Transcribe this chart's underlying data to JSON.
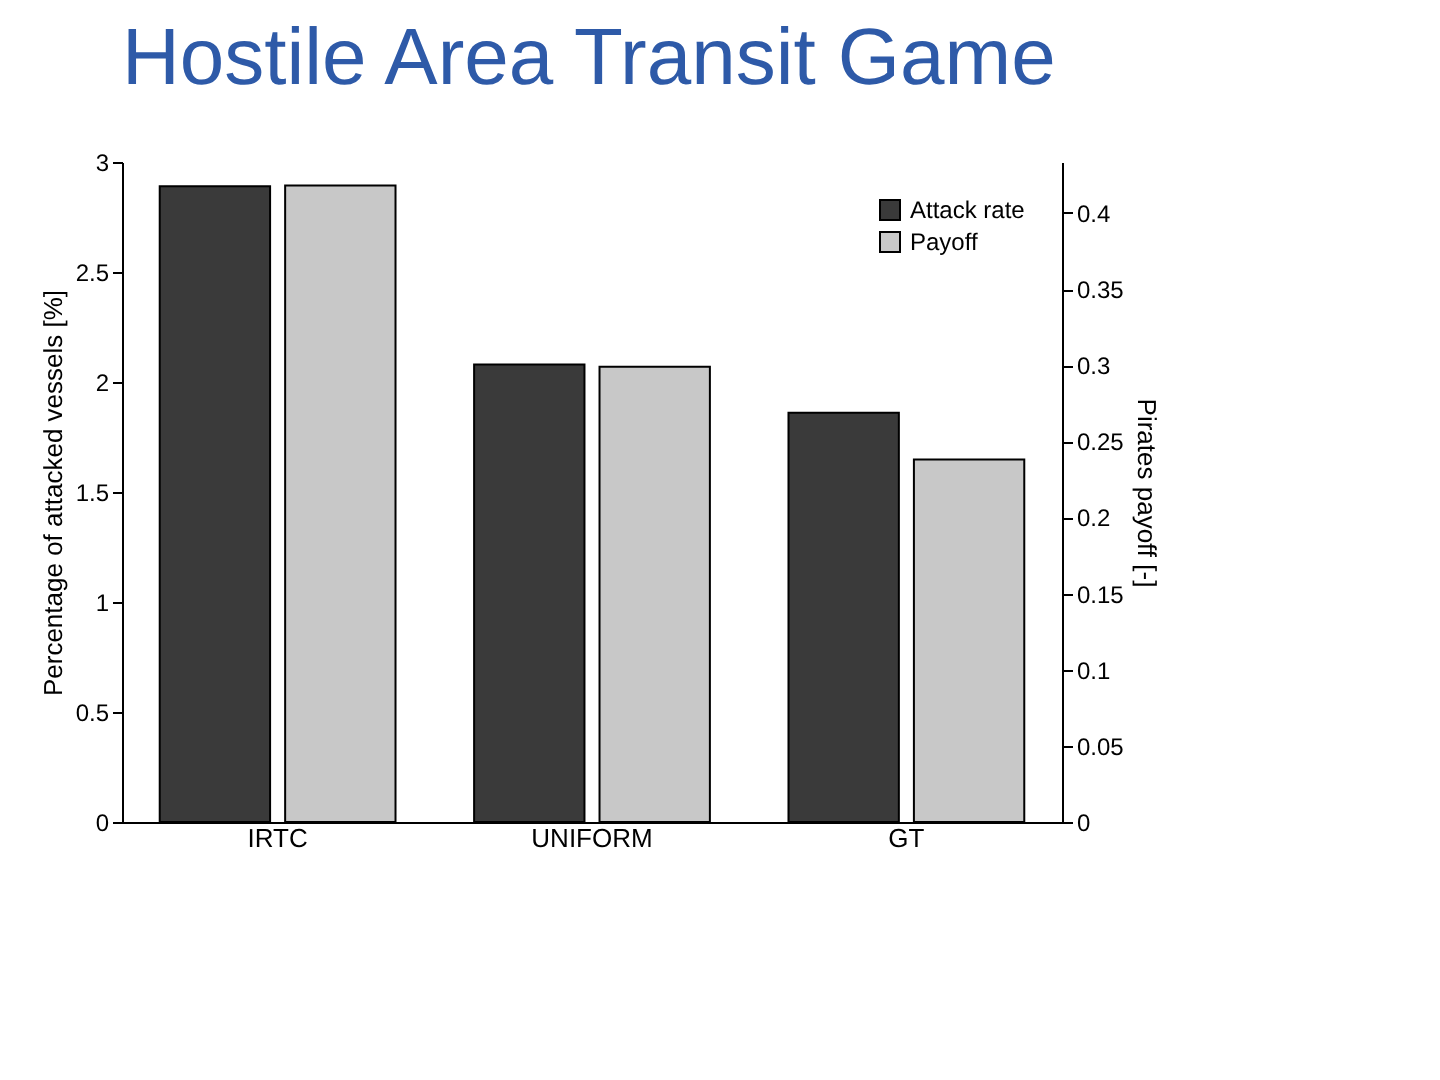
{
  "chart_data": {
    "type": "bar",
    "title": "Hostile Area Transit Game",
    "categories": [
      "IRTC",
      "UNIFORM",
      "GT"
    ],
    "ylabel": "Percentage of attacked vessels [%]",
    "y2label": "Pirates payoff [-]",
    "series": [
      {
        "name": "Attack rate",
        "color": "#3a3a3a",
        "values": [
          2.89,
          2.08,
          1.86
        ]
      },
      {
        "name": "Payoff",
        "color": "#c8c8c8",
        "axis": "y2",
        "values": [
          0.418,
          0.299,
          0.238
        ]
      }
    ],
    "ylim": [
      0,
      3
    ],
    "yticks": [
      0,
      0.5,
      1,
      1.5,
      2,
      2.5,
      3
    ],
    "y2lim": [
      0,
      0.4334
    ],
    "y2ticks": [
      0,
      0.05,
      0.1,
      0.15,
      0.2,
      0.25,
      0.3,
      0.35,
      0.4
    ],
    "legend": "top right",
    "grid": false
  }
}
